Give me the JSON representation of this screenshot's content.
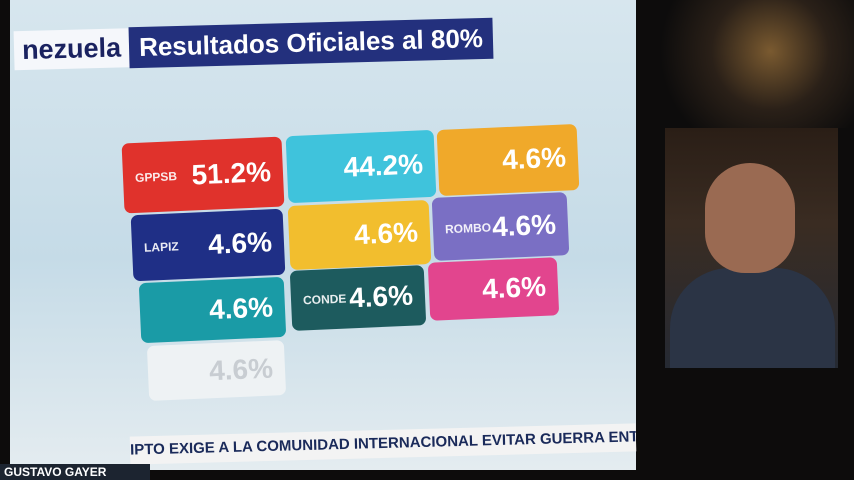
{
  "header": {
    "region": "nezuela",
    "title": "Resultados Oficiales al 80%"
  },
  "tiles": [
    {
      "logo": "GPPSB",
      "value": "51.2%",
      "color": "#e0322c"
    },
    {
      "logo": "",
      "value": "44.2%",
      "color": "#3fc3dc"
    },
    {
      "logo": "",
      "value": "4.6%",
      "color": "#f0a92a"
    },
    {
      "logo": "LAPIZ",
      "value": "4.6%",
      "color": "#1f2f86"
    },
    {
      "logo": "",
      "value": "4.6%",
      "color": "#f2be2e"
    },
    {
      "logo": "ROMBO",
      "value": "4.6%",
      "color": "#7a6fc4"
    },
    {
      "logo": "",
      "value": "4.6%",
      "color": "#1a9ba6"
    },
    {
      "logo": "CONDE",
      "value": "4.6%",
      "color": "#1d5b5e"
    },
    {
      "logo": "",
      "value": "4.6%",
      "color": "#e2458e"
    },
    {
      "logo": "",
      "value": "4.6%",
      "color": "#eef2f4"
    }
  ],
  "ticker": "IPTO EXIGE A LA COMUNIDAD INTERNACIONAL EVITAR GUERRA ENTRE ISR",
  "presenter": "GUSTAVO GAYER"
}
